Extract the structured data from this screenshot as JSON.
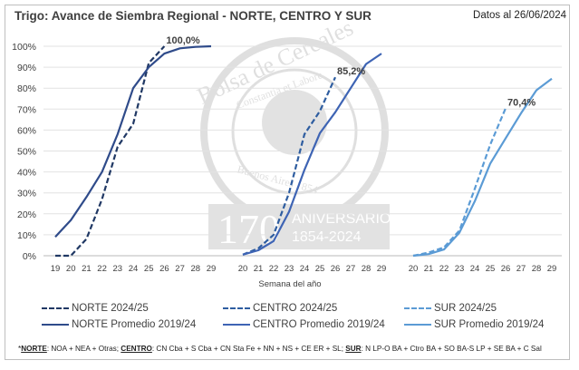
{
  "chart_data": {
    "type": "line",
    "title": "Trigo: Avance de Siembra Regional - NORTE, CENTRO Y SUR",
    "subtitle": "Datos al 26/06/2024",
    "xlabel": "Semana del año",
    "ylabel": "",
    "ylim": [
      0,
      100
    ],
    "yticks": [
      "0%",
      "10%",
      "20%",
      "30%",
      "40%",
      "50%",
      "60%",
      "70%",
      "80%",
      "90%",
      "100%"
    ],
    "grid": true,
    "legend_position": "bottom",
    "panels": [
      {
        "region": "NORTE",
        "x": [
          19,
          20,
          21,
          22,
          23,
          24,
          25,
          26,
          27,
          28,
          29
        ],
        "series": [
          {
            "name": "NORTE 2024/25",
            "style": "dashed",
            "color": "#203864",
            "values": [
              0,
              0,
              8,
              27,
              52,
              63,
              92,
              100,
              null,
              null,
              null
            ]
          },
          {
            "name": "NORTE Promedio 2019/24",
            "style": "solid",
            "color": "#2F4B8A",
            "values": [
              9,
              17,
              28,
              40,
              58,
              80,
              90,
              96.5,
              99,
              99.7,
              100
            ]
          }
        ],
        "annotation": "100,0%"
      },
      {
        "region": "CENTRO",
        "x": [
          20,
          21,
          22,
          23,
          24,
          25,
          26,
          27,
          28,
          29
        ],
        "series": [
          {
            "name": "CENTRO 2024/25",
            "style": "dashed",
            "color": "#2E5DA0",
            "values": [
              0.5,
              3.5,
              10,
              30,
              58,
              69,
              85.2,
              null,
              null,
              null
            ]
          },
          {
            "name": "CENTRO Promedio 2019/24",
            "style": "solid",
            "color": "#3E64B4",
            "values": [
              0.5,
              2.6,
              7,
              21,
              41,
              58.5,
              68.5,
              80,
              91.5,
              96.5
            ]
          }
        ],
        "annotation": "85,2%"
      },
      {
        "region": "SUR",
        "x": [
          20,
          21,
          22,
          23,
          24,
          25,
          26,
          27,
          28,
          29
        ],
        "series": [
          {
            "name": "SUR 2024/25",
            "style": "dashed",
            "color": "#5B9BD5",
            "values": [
              0,
              1.5,
              4,
              12,
              32,
              53,
              70.4,
              null,
              null,
              null
            ]
          },
          {
            "name": "SUR Promedio 2019/24",
            "style": "solid",
            "color": "#5B9BD5",
            "values": [
              0,
              0.8,
              3,
              11,
              26,
              44,
              56,
              68,
              79,
              84.5
            ]
          }
        ],
        "annotation": "70,4%"
      }
    ]
  },
  "footnote": {
    "star": "*",
    "norte_label": "NORTE",
    "norte_text": ": NOA + NEA + Otras; ",
    "centro_label": "CENTRO",
    "centro_text": ": CN Cba + S Cba + CN Sta Fe + NN + NS + CE ER + SL; ",
    "sur_label": "SUR",
    "sur_text": ": N LP-O BA + Ctro BA + SO BA-S LP + SE BA + C Sal"
  },
  "watermark": {
    "name": "Bolsa de Cereales",
    "motto": "Constantia et Labore",
    "city": "Buenos Aires 1854",
    "number": "170",
    "line1": "ANIVERSARIO",
    "line2": "1854-2024"
  }
}
